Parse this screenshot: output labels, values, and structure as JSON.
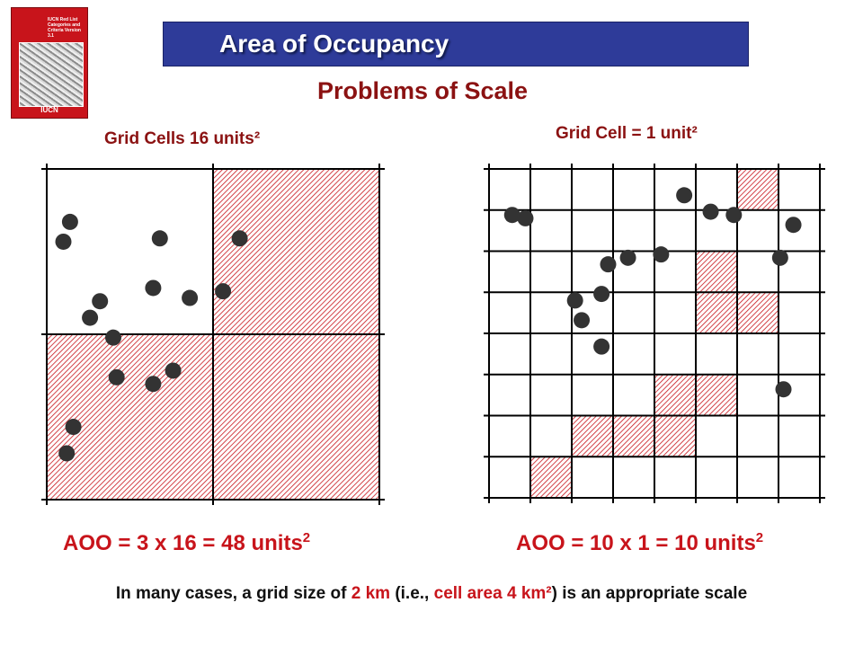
{
  "cover": {
    "title_text": "IUCN Red List Categories and Criteria Version 3.1",
    "brand": "IUCN"
  },
  "banner": {
    "title": "Area of Occupancy"
  },
  "subtitle": "Problems of Scale",
  "left_panel": {
    "label": "Grid Cells 16 units²",
    "grid": {
      "cols": 2,
      "rows": 2
    },
    "occupied_cells": [
      [
        0,
        1
      ],
      [
        1,
        0
      ],
      [
        1,
        1
      ]
    ],
    "points": [
      [
        0.78,
        0.05
      ],
      [
        0.84,
        0.07
      ],
      [
        0.61,
        0.43
      ],
      [
        0.63,
        0.53
      ],
      [
        0.79,
        0.58
      ],
      [
        0.14,
        0.06
      ],
      [
        0.64,
        0.32
      ],
      [
        0.79,
        0.34
      ],
      [
        0.39,
        0.38
      ],
      [
        0.35,
        0.32
      ],
      [
        0.55,
        0.13
      ],
      [
        0.49,
        0.2
      ],
      [
        0.6,
        0.16
      ],
      [
        0.37,
        0.21
      ],
      [
        0.22,
        0.08
      ]
    ],
    "aoo_text": "AOO = 3 x 16 = 48 units",
    "aoo_exp": "2"
  },
  "right_panel": {
    "label": "Grid Cell = 1 unit²",
    "grid": {
      "cols": 8,
      "rows": 8
    },
    "occupied_cells": [
      [
        0,
        6
      ],
      [
        2,
        5
      ],
      [
        3,
        5
      ],
      [
        3,
        6
      ],
      [
        5,
        4
      ],
      [
        5,
        5
      ],
      [
        6,
        2
      ],
      [
        6,
        3
      ],
      [
        6,
        4
      ],
      [
        7,
        1
      ]
    ],
    "points": [
      [
        0.85,
        0.11
      ],
      [
        0.86,
        0.07
      ],
      [
        0.73,
        0.42
      ],
      [
        0.74,
        0.52
      ],
      [
        0.92,
        0.59
      ],
      [
        0.33,
        0.89
      ],
      [
        0.73,
        0.88
      ],
      [
        0.83,
        0.92
      ],
      [
        0.87,
        0.67
      ],
      [
        0.86,
        0.74
      ],
      [
        0.54,
        0.28
      ],
      [
        0.46,
        0.34
      ],
      [
        0.62,
        0.34
      ],
      [
        0.6,
        0.26
      ],
      [
        0.71,
        0.36
      ]
    ],
    "aoo_text": "AOO = 10 x 1 = 10 units",
    "aoo_exp": "2"
  },
  "footer": {
    "part1": "In many cases, a grid size of ",
    "highlight1": "2 km",
    "part2": " (i.e., ",
    "highlight2": "cell area 4 km²",
    "part3": ") is an appropriate scale"
  },
  "colors": {
    "hatch": "#c8141b",
    "dot": "#333333",
    "grid": "#000000",
    "title": "#8b1212",
    "banner": "#2e3b99"
  }
}
